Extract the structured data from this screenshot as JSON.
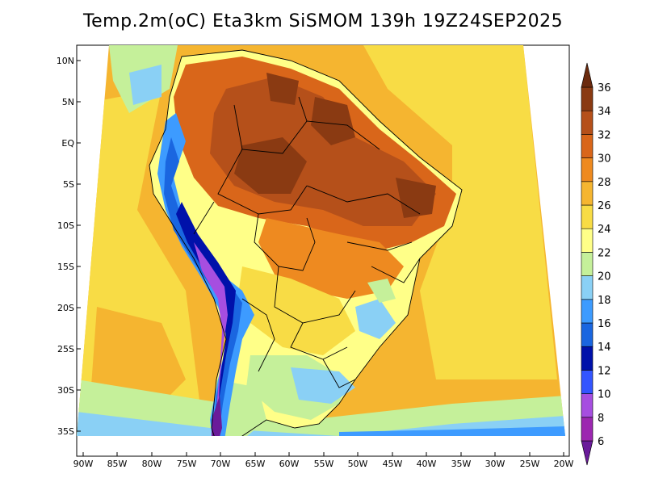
{
  "title": "Temp.2m(oC) Eta3km SiSMOM 139h 19Z24SEP2025",
  "map": {
    "variable": "2 m air temperature",
    "units": "oC",
    "model": "Eta3km SiSMOM",
    "region": "South America",
    "lat_ticks": [
      "10N",
      "5N",
      "EQ",
      "5S",
      "10S",
      "15S",
      "20S",
      "25S",
      "30S",
      "35S"
    ],
    "lon_ticks": [
      "90W",
      "85W",
      "80W",
      "75W",
      "70W",
      "65W",
      "60W",
      "55W",
      "50W",
      "45W",
      "40W",
      "35W",
      "30W",
      "25W",
      "20W"
    ]
  },
  "colorbar": {
    "labels": [
      "6",
      "8",
      "10",
      "12",
      "14",
      "16",
      "18",
      "20",
      "22",
      "24",
      "26",
      "28",
      "30",
      "32",
      "34",
      "36"
    ],
    "colors": [
      "#6a1b9a",
      "#9c27b0",
      "#a64ee0",
      "#3355ff",
      "#0011aa",
      "#1a66e0",
      "#3d9bff",
      "#8ad0f5",
      "#c5f09a",
      "#ffff88",
      "#f8dc45",
      "#f5b530",
      "#ee8a20",
      "#d9661a",
      "#b5501a",
      "#8a3a12",
      "#6b2a0e"
    ]
  }
}
